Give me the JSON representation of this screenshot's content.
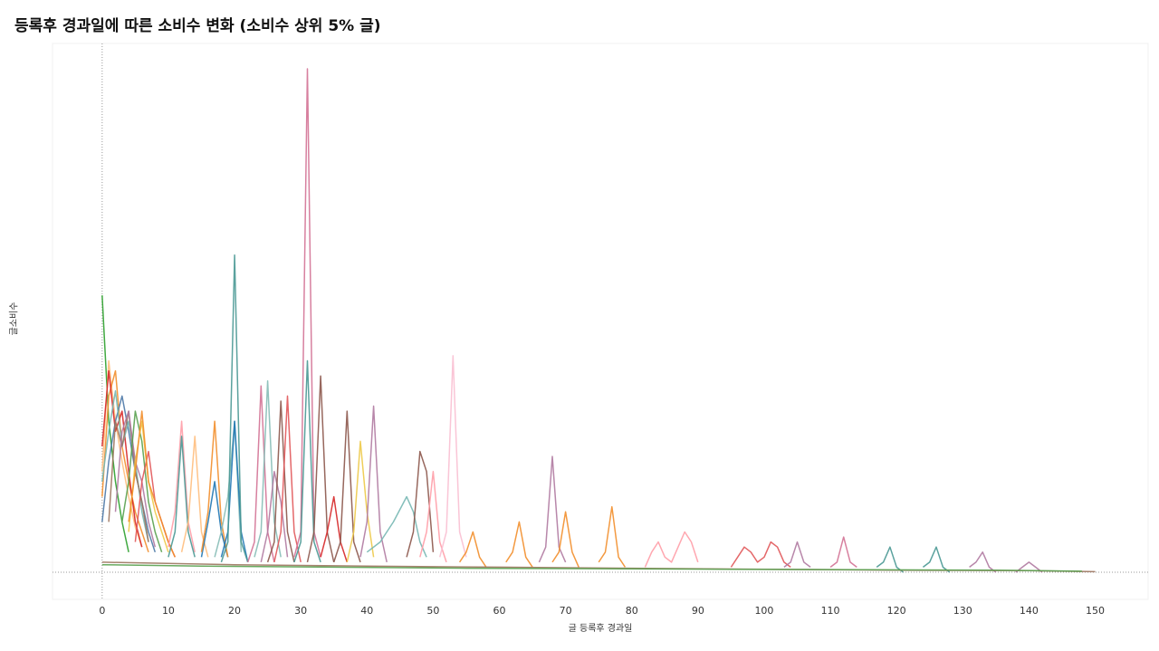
{
  "chart_data": {
    "type": "line",
    "title": "등록후 경과일에 따른 소비수 변화 (소비수 상위 5% 글)",
    "xlabel": "글 등록후 경과일",
    "ylabel": "글소비수",
    "xlim": [
      -7.5,
      158
    ],
    "ylim": [
      0,
      100
    ],
    "x_ticks": [
      0,
      10,
      20,
      30,
      40,
      50,
      60,
      70,
      80,
      90,
      100,
      110,
      120,
      130,
      140,
      150
    ],
    "grid": false,
    "legend": "none",
    "num_series_note": "many overlapping series; representative peaks shown",
    "palette": [
      "#e15759",
      "#4e79a7",
      "#f28e2b",
      "#76b7b2",
      "#59a14f",
      "#edc948",
      "#b07aa1",
      "#ff9da7",
      "#9c755f",
      "#bab0ac",
      "#1f77b4",
      "#2ca02c",
      "#d62728",
      "#17becf",
      "#8c564b",
      "#e377c2",
      "#ffbe7d",
      "#499894",
      "#86bcb6",
      "#f1ce63",
      "#d37295",
      "#a0cbe8",
      "#8cd17d",
      "#fabfd2",
      "#b6992d"
    ],
    "series": [
      {
        "color": "#2ca02c",
        "x": [
          0,
          1,
          2,
          3,
          4
        ],
        "y": [
          55,
          30,
          18,
          10,
          4
        ]
      },
      {
        "color": "#ffbe7d",
        "x": [
          0,
          1,
          2,
          3,
          4,
          5,
          6
        ],
        "y": [
          20,
          42,
          30,
          22,
          15,
          9,
          5
        ]
      },
      {
        "color": "#f28e2b",
        "x": [
          0,
          1,
          2,
          3,
          4,
          5,
          6,
          7
        ],
        "y": [
          15,
          35,
          40,
          25,
          18,
          12,
          8,
          4
        ]
      },
      {
        "color": "#d62728",
        "x": [
          0,
          1,
          2,
          3,
          4,
          5,
          6
        ],
        "y": [
          25,
          40,
          28,
          32,
          20,
          10,
          5
        ]
      },
      {
        "color": "#4e79a7",
        "x": [
          0,
          1,
          2,
          3,
          4,
          5,
          6,
          7,
          8
        ],
        "y": [
          10,
          22,
          30,
          35,
          28,
          20,
          14,
          8,
          4
        ]
      },
      {
        "color": "#76b7b2",
        "x": [
          0,
          1,
          2,
          3,
          4,
          5,
          6,
          7
        ],
        "y": [
          18,
          28,
          36,
          25,
          30,
          22,
          12,
          6
        ]
      },
      {
        "color": "#9c755f",
        "x": [
          1,
          2,
          3,
          4,
          5,
          6,
          7
        ],
        "y": [
          10,
          30,
          25,
          32,
          20,
          14,
          6
        ]
      },
      {
        "color": "#b07aa1",
        "x": [
          2,
          3,
          4,
          5,
          6,
          7,
          8
        ],
        "y": [
          12,
          28,
          32,
          22,
          18,
          10,
          5
        ]
      },
      {
        "color": "#59a14f",
        "x": [
          3,
          4,
          5,
          6,
          7,
          8,
          9
        ],
        "y": [
          10,
          18,
          32,
          26,
          14,
          8,
          4
        ]
      },
      {
        "color": "#edc948",
        "x": [
          4,
          5,
          6,
          7,
          8,
          9,
          10
        ],
        "y": [
          8,
          22,
          30,
          18,
          12,
          8,
          4
        ]
      },
      {
        "color": "#e15759",
        "x": [
          5,
          6,
          7,
          8,
          9,
          10,
          11
        ],
        "y": [
          6,
          18,
          24,
          14,
          10,
          6,
          3
        ]
      },
      {
        "color": "#f28e2b",
        "x": [
          4,
          5,
          6,
          7,
          8,
          9,
          10,
          11
        ],
        "y": [
          10,
          20,
          32,
          18,
          14,
          10,
          6,
          3
        ]
      },
      {
        "color": "#ff9da7",
        "x": [
          10,
          11,
          12,
          13,
          14
        ],
        "y": [
          5,
          12,
          30,
          10,
          4
        ]
      },
      {
        "color": "#499894",
        "x": [
          10,
          11,
          12,
          13,
          14
        ],
        "y": [
          3,
          8,
          27,
          8,
          3
        ]
      },
      {
        "color": "#ffbe7d",
        "x": [
          12,
          13,
          14,
          15,
          16
        ],
        "y": [
          4,
          10,
          27,
          8,
          3
        ]
      },
      {
        "color": "#1f77b4",
        "x": [
          15,
          16,
          17,
          18,
          19
        ],
        "y": [
          3,
          10,
          18,
          8,
          3
        ]
      },
      {
        "color": "#f28e2b",
        "x": [
          15,
          16,
          17,
          18,
          19
        ],
        "y": [
          4,
          12,
          30,
          10,
          3
        ]
      },
      {
        "color": "#86bcb6",
        "x": [
          17,
          18,
          19,
          20,
          21
        ],
        "y": [
          3,
          8,
          15,
          30,
          4
        ]
      },
      {
        "color": "#1f77b4",
        "x": [
          18,
          19,
          20,
          21,
          22
        ],
        "y": [
          3,
          8,
          30,
          8,
          2
        ]
      },
      {
        "color": "#499894",
        "x": [
          18,
          19,
          20,
          21,
          22
        ],
        "y": [
          2,
          6,
          63,
          6,
          2
        ]
      },
      {
        "color": "#d37295",
        "x": [
          22,
          23,
          24,
          25,
          26
        ],
        "y": [
          2,
          6,
          37,
          8,
          2
        ]
      },
      {
        "color": "#86bcb6",
        "x": [
          23,
          24,
          25,
          26,
          27
        ],
        "y": [
          3,
          8,
          38,
          10,
          3
        ]
      },
      {
        "color": "#b07aa1",
        "x": [
          24,
          25,
          26,
          27,
          28
        ],
        "y": [
          2,
          8,
          20,
          14,
          3
        ]
      },
      {
        "color": "#8c564b",
        "x": [
          25,
          26,
          27,
          28,
          29
        ],
        "y": [
          2,
          6,
          34,
          8,
          2
        ]
      },
      {
        "color": "#e15759",
        "x": [
          26,
          27,
          28,
          29,
          30
        ],
        "y": [
          2,
          8,
          35,
          8,
          2
        ]
      },
      {
        "color": "#d37295",
        "x": [
          29,
          30,
          31,
          32,
          33
        ],
        "y": [
          3,
          8,
          100,
          8,
          3
        ]
      },
      {
        "color": "#499894",
        "x": [
          29,
          30,
          31,
          32,
          33
        ],
        "y": [
          2,
          6,
          42,
          6,
          2
        ]
      },
      {
        "color": "#8c564b",
        "x": [
          31,
          32,
          33,
          34,
          35
        ],
        "y": [
          2,
          8,
          39,
          8,
          2
        ]
      },
      {
        "color": "#d62728",
        "x": [
          33,
          34,
          35,
          36,
          37
        ],
        "y": [
          3,
          8,
          15,
          6,
          2
        ]
      },
      {
        "color": "#8c564b",
        "x": [
          35,
          36,
          37,
          38,
          39
        ],
        "y": [
          2,
          6,
          32,
          6,
          2
        ]
      },
      {
        "color": "#edc948",
        "x": [
          37,
          38,
          39,
          40,
          41
        ],
        "y": [
          2,
          8,
          26,
          12,
          3
        ]
      },
      {
        "color": "#b07aa1",
        "x": [
          39,
          40,
          41,
          42,
          43
        ],
        "y": [
          3,
          10,
          33,
          8,
          2
        ]
      },
      {
        "color": "#76b7b2",
        "x": [
          40,
          42,
          44,
          46,
          47,
          48,
          49
        ],
        "y": [
          4,
          6,
          10,
          15,
          12,
          6,
          3
        ]
      },
      {
        "color": "#8c564b",
        "x": [
          46,
          47,
          48,
          49,
          50
        ],
        "y": [
          3,
          8,
          24,
          20,
          4
        ]
      },
      {
        "color": "#ff9da7",
        "x": [
          48,
          49,
          50,
          51,
          52
        ],
        "y": [
          3,
          8,
          20,
          6,
          2
        ]
      },
      {
        "color": "#fabfd2",
        "x": [
          51,
          52,
          53,
          54,
          55
        ],
        "y": [
          3,
          8,
          43,
          8,
          3
        ]
      },
      {
        "color": "#f28e2b",
        "x": [
          54,
          55,
          56,
          57,
          58
        ],
        "y": [
          2,
          4,
          8,
          3,
          1
        ]
      },
      {
        "color": "#f28e2b",
        "x": [
          61,
          62,
          63,
          64,
          65
        ],
        "y": [
          2,
          4,
          10,
          3,
          1
        ]
      },
      {
        "color": "#b07aa1",
        "x": [
          66,
          67,
          68,
          69,
          70
        ],
        "y": [
          2,
          5,
          23,
          5,
          2
        ]
      },
      {
        "color": "#f28e2b",
        "x": [
          68,
          69,
          70,
          71,
          72
        ],
        "y": [
          2,
          4,
          12,
          4,
          1
        ]
      },
      {
        "color": "#f28e2b",
        "x": [
          75,
          76,
          77,
          78,
          79
        ],
        "y": [
          2,
          4,
          13,
          3,
          1
        ]
      },
      {
        "color": "#ff9da7",
        "x": [
          82,
          83,
          84,
          85,
          86,
          87,
          88,
          89,
          90
        ],
        "y": [
          1,
          4,
          6,
          3,
          2,
          5,
          8,
          6,
          2
        ]
      },
      {
        "color": "#e15759",
        "x": [
          95,
          96,
          97,
          98,
          99,
          100,
          101,
          102,
          103,
          104
        ],
        "y": [
          1,
          3,
          5,
          4,
          2,
          3,
          6,
          5,
          2,
          1
        ]
      },
      {
        "color": "#b07aa1",
        "x": [
          103,
          104,
          105,
          106,
          107
        ],
        "y": [
          1,
          2,
          6,
          2,
          1
        ]
      },
      {
        "color": "#d37295",
        "x": [
          110,
          111,
          112,
          113,
          114
        ],
        "y": [
          1,
          2,
          7,
          2,
          1
        ]
      },
      {
        "color": "#499894",
        "x": [
          117,
          118,
          119,
          120,
          121
        ],
        "y": [
          1,
          2,
          5,
          1,
          0
        ]
      },
      {
        "color": "#499894",
        "x": [
          124,
          125,
          126,
          127,
          128
        ],
        "y": [
          1,
          2,
          5,
          1,
          0
        ]
      },
      {
        "color": "#b07aa1",
        "x": [
          131,
          132,
          133,
          134,
          135
        ],
        "y": [
          1,
          2,
          4,
          1,
          0
        ]
      },
      {
        "color": "#b07aa1",
        "x": [
          138,
          139,
          140,
          141,
          142
        ],
        "y": [
          0,
          1,
          2,
          1,
          0
        ]
      },
      {
        "color": "#9c755f",
        "x": [
          0,
          20,
          40,
          60,
          80,
          100,
          120,
          140,
          150
        ],
        "y": [
          2,
          1.5,
          1.2,
          1,
          0.8,
          0.6,
          0.4,
          0.3,
          0.1
        ]
      },
      {
        "color": "#59a14f",
        "x": [
          0,
          15,
          35,
          55,
          75,
          95,
          115,
          135,
          148
        ],
        "y": [
          1.5,
          1.2,
          1,
          0.8,
          0.7,
          0.6,
          0.5,
          0.4,
          0.2
        ]
      }
    ]
  }
}
